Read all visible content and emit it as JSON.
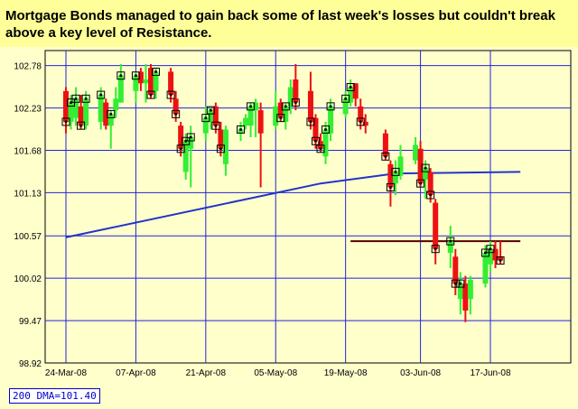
{
  "banner": {
    "line1": "Mortgage Bonds managed to gain back  some of last week's losses but couldn't break",
    "line2": "above a key level of Resistance."
  },
  "legend_label": "200 DMA=101.40",
  "colors": {
    "up": "#33ee33",
    "down": "#ee1111",
    "grid": "#2222dd",
    "dma": "#2233cc",
    "resistance": "#550000",
    "plot_bg": "#ffffcc"
  },
  "chart_data": {
    "type": "candlestick",
    "title": "",
    "xlabel": "",
    "ylabel": "",
    "ylim": [
      98.92,
      102.9
    ],
    "y_ticks": [
      "102.78",
      "102.23",
      "101.68",
      "101.13",
      "100.57",
      "100.02",
      "99.47",
      "98.92"
    ],
    "x_ticks": [
      "24-Mar-08",
      "07-Apr-08",
      "21-Apr-08",
      "05-May-08",
      "19-May-08",
      "03-Jun-08",
      "17-Jun-08"
    ],
    "grid": true,
    "candles": [
      {
        "date": "24-Mar-08",
        "open": 102.45,
        "high": 102.5,
        "low": 101.9,
        "close": 102.05
      },
      {
        "date": "25-Mar-08",
        "open": 102.05,
        "high": 102.4,
        "low": 101.95,
        "close": 102.3
      },
      {
        "date": "26-Mar-08",
        "open": 102.1,
        "high": 102.5,
        "low": 102.0,
        "close": 102.35
      },
      {
        "date": "27-Mar-08",
        "open": 102.25,
        "high": 102.4,
        "low": 101.95,
        "close": 102.0
      },
      {
        "date": "28-Mar-08",
        "open": 102.0,
        "high": 102.45,
        "low": 101.95,
        "close": 102.35
      },
      {
        "date": "31-Mar-08",
        "open": 102.05,
        "high": 102.5,
        "low": 101.95,
        "close": 102.4
      },
      {
        "date": "01-Apr-08",
        "open": 102.3,
        "high": 102.35,
        "low": 101.95,
        "close": 102.0
      },
      {
        "date": "02-Apr-08",
        "open": 102.0,
        "high": 102.2,
        "low": 101.7,
        "close": 102.15
      },
      {
        "date": "03-Apr-08",
        "open": 102.2,
        "high": 102.5,
        "low": 102.1,
        "close": 102.35
      },
      {
        "date": "04-Apr-08",
        "open": 102.3,
        "high": 102.8,
        "low": 102.3,
        "close": 102.65
      },
      {
        "date": "07-Apr-08",
        "open": 102.45,
        "high": 102.7,
        "low": 102.3,
        "close": 102.65
      },
      {
        "date": "08-Apr-08",
        "open": 102.7,
        "high": 102.75,
        "low": 102.45,
        "close": 102.55
      },
      {
        "date": "09-Apr-08",
        "open": 102.55,
        "high": 102.8,
        "low": 102.3,
        "close": 102.6
      },
      {
        "date": "10-Apr-08",
        "open": 102.75,
        "high": 102.8,
        "low": 102.35,
        "close": 102.4
      },
      {
        "date": "11-Apr-08",
        "open": 102.45,
        "high": 102.75,
        "low": 102.35,
        "close": 102.7
      },
      {
        "date": "14-Apr-08",
        "open": 102.7,
        "high": 102.75,
        "low": 102.3,
        "close": 102.4
      },
      {
        "date": "15-Apr-08",
        "open": 102.35,
        "high": 102.45,
        "low": 102.05,
        "close": 102.15
      },
      {
        "date": "16-Apr-08",
        "open": 102.0,
        "high": 102.05,
        "low": 101.6,
        "close": 101.7
      },
      {
        "date": "17-Apr-08",
        "open": 101.4,
        "high": 101.9,
        "low": 101.3,
        "close": 101.8
      },
      {
        "date": "18-Apr-08",
        "open": 101.7,
        "high": 102.0,
        "low": 101.2,
        "close": 101.85
      },
      {
        "date": "21-Apr-08",
        "open": 101.9,
        "high": 102.25,
        "low": 101.8,
        "close": 102.1
      },
      {
        "date": "22-Apr-08",
        "open": 102.05,
        "high": 102.25,
        "low": 101.95,
        "close": 102.2
      },
      {
        "date": "23-Apr-08",
        "open": 102.25,
        "high": 102.3,
        "low": 101.9,
        "close": 102.0
      },
      {
        "date": "24-Apr-08",
        "open": 101.95,
        "high": 102.05,
        "low": 101.6,
        "close": 101.7
      },
      {
        "date": "25-Apr-08",
        "open": 101.5,
        "high": 102.0,
        "low": 101.35,
        "close": 101.95
      },
      {
        "date": "28-Apr-08",
        "open": 101.9,
        "high": 102.05,
        "low": 101.8,
        "close": 101.95
      },
      {
        "date": "29-Apr-08",
        "open": 102.0,
        "high": 102.15,
        "low": 101.95,
        "close": 102.1
      },
      {
        "date": "30-Apr-08",
        "open": 102.0,
        "high": 102.3,
        "low": 101.85,
        "close": 102.25
      },
      {
        "date": "01-May-08",
        "open": 102.2,
        "high": 102.35,
        "low": 101.85,
        "close": 102.3
      },
      {
        "date": "02-May-08",
        "open": 102.2,
        "high": 102.3,
        "low": 101.2,
        "close": 101.9
      },
      {
        "date": "05-May-08",
        "open": 102.0,
        "high": 102.45,
        "low": 101.95,
        "close": 102.25
      },
      {
        "date": "06-May-08",
        "open": 102.3,
        "high": 102.35,
        "low": 102.05,
        "close": 102.1
      },
      {
        "date": "07-May-08",
        "open": 102.05,
        "high": 102.3,
        "low": 101.95,
        "close": 102.25
      },
      {
        "date": "08-May-08",
        "open": 102.25,
        "high": 102.6,
        "low": 102.15,
        "close": 102.5
      },
      {
        "date": "09-May-08",
        "open": 102.6,
        "high": 102.8,
        "low": 102.2,
        "close": 102.3
      },
      {
        "date": "12-May-08",
        "open": 102.45,
        "high": 102.7,
        "low": 101.95,
        "close": 102.05
      },
      {
        "date": "13-May-08",
        "open": 102.1,
        "high": 102.15,
        "low": 101.7,
        "close": 101.8
      },
      {
        "date": "14-May-08",
        "open": 101.8,
        "high": 101.9,
        "low": 101.65,
        "close": 101.7
      },
      {
        "date": "15-May-08",
        "open": 101.6,
        "high": 102.05,
        "low": 101.5,
        "close": 101.95
      },
      {
        "date": "16-May-08",
        "open": 101.9,
        "high": 102.35,
        "low": 101.8,
        "close": 102.25
      },
      {
        "date": "19-May-08",
        "open": 102.15,
        "high": 102.45,
        "low": 102.1,
        "close": 102.35
      },
      {
        "date": "20-May-08",
        "open": 102.3,
        "high": 102.6,
        "low": 102.25,
        "close": 102.5
      },
      {
        "date": "21-May-08",
        "open": 102.55,
        "high": 102.55,
        "low": 102.25,
        "close": 102.35
      },
      {
        "date": "22-May-08",
        "open": 102.25,
        "high": 102.35,
        "low": 101.95,
        "close": 102.05
      },
      {
        "date": "23-May-08",
        "open": 102.05,
        "high": 102.15,
        "low": 101.9,
        "close": 102.0
      },
      {
        "date": "27-May-08",
        "open": 101.9,
        "high": 101.95,
        "low": 101.55,
        "close": 101.6
      },
      {
        "date": "28-May-08",
        "open": 101.5,
        "high": 101.55,
        "low": 100.95,
        "close": 101.2
      },
      {
        "date": "29-May-08",
        "open": 101.25,
        "high": 101.55,
        "low": 101.1,
        "close": 101.4
      },
      {
        "date": "30-May-08",
        "open": 101.35,
        "high": 101.75,
        "low": 101.3,
        "close": 101.6
      },
      {
        "date": "02-Jun-08",
        "open": 101.55,
        "high": 101.85,
        "low": 101.5,
        "close": 101.75
      },
      {
        "date": "03-Jun-08",
        "open": 101.7,
        "high": 101.8,
        "low": 101.2,
        "close": 101.25
      },
      {
        "date": "04-Jun-08",
        "open": 101.3,
        "high": 101.55,
        "low": 101.05,
        "close": 101.45
      },
      {
        "date": "05-Jun-08",
        "open": 101.4,
        "high": 101.45,
        "low": 101.0,
        "close": 101.1
      },
      {
        "date": "06-Jun-08",
        "open": 101.0,
        "high": 101.05,
        "low": 100.2,
        "close": 100.4
      },
      {
        "date": "09-Jun-08",
        "open": 100.35,
        "high": 100.7,
        "low": 100.15,
        "close": 100.5
      },
      {
        "date": "10-Jun-08",
        "open": 100.3,
        "high": 100.4,
        "low": 99.8,
        "close": 99.95
      },
      {
        "date": "11-Jun-08",
        "open": 99.75,
        "high": 100.1,
        "low": 99.55,
        "close": 99.95
      },
      {
        "date": "12-Jun-08",
        "open": 99.95,
        "high": 100.05,
        "low": 99.45,
        "close": 99.6
      },
      {
        "date": "13-Jun-08",
        "open": 99.75,
        "high": 100.05,
        "low": 99.55,
        "close": 100.0
      },
      {
        "date": "16-Jun-08",
        "open": 99.95,
        "high": 100.45,
        "low": 99.9,
        "close": 100.35
      },
      {
        "date": "17-Jun-08",
        "open": 100.2,
        "high": 100.5,
        "low": 100.1,
        "close": 100.4
      },
      {
        "date": "18-Jun-08",
        "open": 100.4,
        "high": 100.5,
        "low": 100.15,
        "close": 100.25
      },
      {
        "date": "19-Jun-08",
        "open": 100.3,
        "high": 100.5,
        "low": 100.2,
        "close": 100.25
      }
    ],
    "series": [
      {
        "type": "line",
        "points": [
          {
            "date": "24-Mar-08",
            "value": 100.55
          },
          {
            "date": "14-May-08",
            "value": 101.25
          },
          {
            "date": "29-May-08",
            "value": 101.38
          },
          {
            "date": "23-Jun-08",
            "value": 101.4
          }
        ]
      }
    ],
    "annotations": [
      {
        "type": "horizontal-line",
        "value": 100.5,
        "from": "20-May-08",
        "to": "23-Jun-08"
      }
    ]
  }
}
